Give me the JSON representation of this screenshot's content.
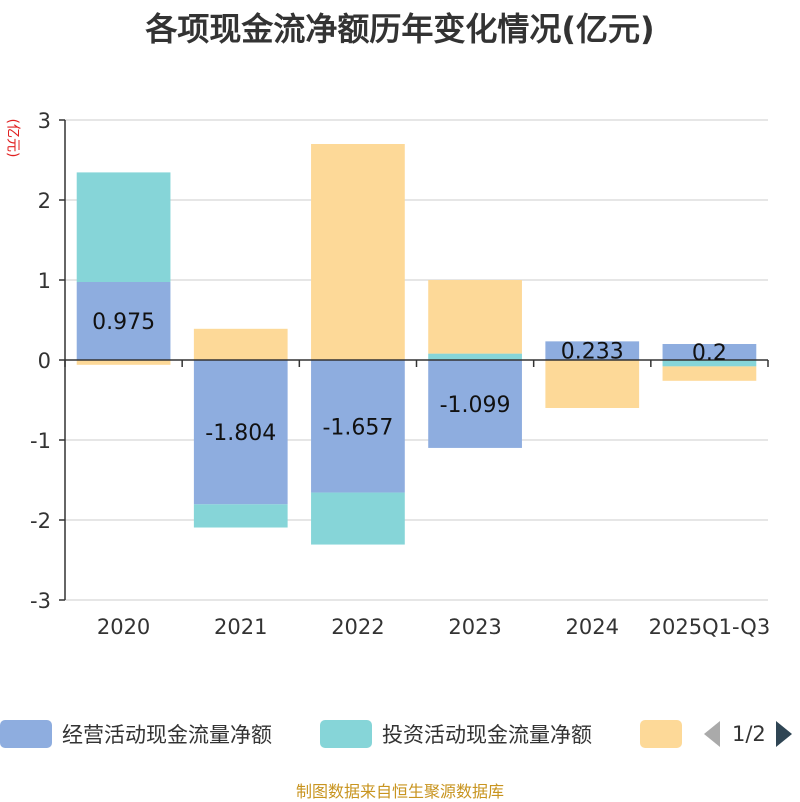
{
  "chart_data": {
    "type": "bar",
    "title": "各项现金流净额历年变化情况(亿元)",
    "ylabel": "(亿元)",
    "categories": [
      "2020",
      "2021",
      "2022",
      "2023",
      "2024",
      "2025Q1-Q3"
    ],
    "ylim": [
      -3,
      3
    ],
    "yticks": [
      3,
      2,
      1,
      0,
      -1,
      -2,
      -3
    ],
    "grid": true,
    "stacked": true,
    "legend_position": "bottom",
    "series": [
      {
        "name": "经营活动现金流量净额",
        "color": "#8eaddf",
        "values": [
          0.975,
          -1.804,
          -1.657,
          -1.099,
          0.233,
          0.2
        ],
        "labels": [
          "0.975",
          "-1.804",
          "-1.657",
          "-1.099",
          "0.233",
          "0.2"
        ]
      },
      {
        "name": "投资活动现金流量净额",
        "color": "#86d5d8",
        "values": [
          1.37,
          -0.29,
          -0.65,
          0.08,
          0.0,
          -0.08
        ]
      },
      {
        "name": "",
        "color": "#fdd998",
        "values": [
          -0.06,
          0.39,
          2.7,
          0.92,
          -0.6,
          -0.18
        ]
      }
    ]
  },
  "legend": {
    "items": [
      {
        "label": "经营活动现金流量净额",
        "color": "#8eaddf"
      },
      {
        "label": "投资活动现金流量净额",
        "color": "#86d5d8"
      },
      {
        "label": "",
        "color": "#fdd998"
      }
    ],
    "page_text": "1/2"
  },
  "source": "制图数据来自恒生聚源数据库"
}
